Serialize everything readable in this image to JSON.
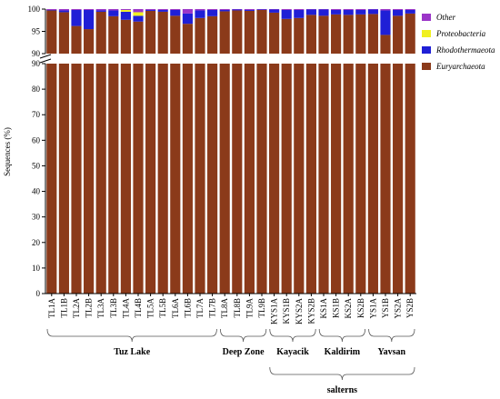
{
  "chart_data": {
    "type": "bar",
    "stacked": true,
    "broken_axis": true,
    "ylabel": "Sequences (%)",
    "y_lower_range": [
      0,
      90
    ],
    "y_upper_range": [
      90,
      100
    ],
    "lower_ticks": [
      "0",
      "10",
      "20",
      "30",
      "40",
      "50",
      "60",
      "70",
      "80",
      "90"
    ],
    "upper_ticks": [
      "90",
      "95",
      "100"
    ],
    "categories": [
      "TL1A",
      "TL1B",
      "TL2A",
      "TL2B",
      "TL3A",
      "TL3B",
      "TL4A",
      "TL4B",
      "TL5A",
      "TL5B",
      "TL6A",
      "TL6B",
      "TL7A",
      "TL7B",
      "TL8A",
      "TL8B",
      "TL9A",
      "TL9B",
      "KYS1A",
      "KYS1B",
      "KYS2A",
      "KYS2B",
      "KS1A",
      "KS1B",
      "KS2A",
      "KS2B",
      "YS1A",
      "YS1B",
      "YS2A",
      "YS2B"
    ],
    "series": [
      {
        "name": "Euryarchaeota",
        "color": "#8b3a1a",
        "values": [
          99.7,
          99.3,
          96.2,
          95.5,
          99.4,
          98.4,
          97.6,
          97.2,
          99.6,
          99.4,
          98.5,
          96.7,
          98.0,
          98.4,
          99.5,
          99.7,
          99.6,
          99.8,
          99.2,
          97.8,
          98.0,
          98.7,
          98.5,
          98.8,
          98.7,
          98.8,
          98.9,
          94.2,
          98.5,
          99.0
        ]
      },
      {
        "name": "Rhodothermaeota",
        "color": "#1f1fd6",
        "values": [
          0.1,
          0.4,
          3.6,
          4.3,
          0.3,
          1.3,
          1.8,
          1.3,
          0.2,
          0.4,
          1.3,
          2.3,
          1.7,
          1.4,
          0.3,
          0.2,
          0.2,
          0.1,
          0.7,
          2.0,
          1.8,
          1.2,
          1.4,
          1.0,
          1.1,
          1.0,
          1.0,
          5.5,
          1.3,
          0.8
        ]
      },
      {
        "name": "Proteobacteria",
        "color": "#f0f020",
        "values": [
          0.0,
          0.0,
          0.0,
          0.0,
          0.0,
          0.0,
          0.4,
          0.8,
          0.0,
          0.0,
          0.0,
          0.0,
          0.0,
          0.0,
          0.0,
          0.0,
          0.0,
          0.0,
          0.0,
          0.0,
          0.0,
          0.0,
          0.0,
          0.0,
          0.0,
          0.0,
          0.0,
          0.0,
          0.0,
          0.0
        ]
      },
      {
        "name": "Other",
        "color": "#9b35c8",
        "values": [
          0.2,
          0.3,
          0.2,
          0.2,
          0.3,
          0.3,
          0.2,
          0.7,
          0.2,
          0.2,
          0.2,
          1.0,
          0.3,
          0.2,
          0.2,
          0.1,
          0.2,
          0.1,
          0.1,
          0.2,
          0.2,
          0.1,
          0.1,
          0.2,
          0.2,
          0.2,
          0.1,
          0.3,
          0.2,
          0.2
        ]
      }
    ],
    "legend": {
      "placement": "top-right",
      "entries": [
        {
          "label": "Other",
          "color": "#9b35c8"
        },
        {
          "label": "Proteobacteria",
          "color": "#f0f020"
        },
        {
          "label": "Rhodothermaeota",
          "color": "#1f1fd6"
        },
        {
          "label": "Euryarchaeota",
          "color": "#8b3a1a"
        }
      ]
    },
    "groups": [
      {
        "label": "Tuz Lake",
        "from": 0,
        "to": 13
      },
      {
        "label": "Deep Zone",
        "from": 14,
        "to": 17
      },
      {
        "label": "Kayacik",
        "from": 18,
        "to": 21
      },
      {
        "label": "Kaldirim",
        "from": 22,
        "to": 25
      },
      {
        "label": "Yavsan",
        "from": 26,
        "to": 29
      }
    ],
    "super_group": {
      "label": "salterns",
      "from": 18,
      "to": 29
    }
  }
}
